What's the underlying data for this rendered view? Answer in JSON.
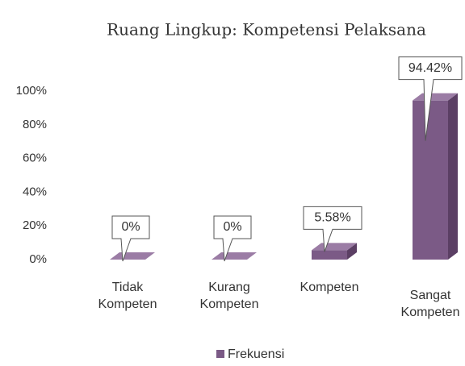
{
  "chart_data": {
    "type": "bar3d",
    "title": "Ruang Lingkup: Kompetensi Pelaksana",
    "categories": [
      "Tidak Kompeten",
      "Kurang Kompeten",
      "Kompeten",
      "Sangat Kompeten"
    ],
    "series": [
      {
        "name": "Frekuensi",
        "color": "#7b5a86",
        "values": [
          0,
          0,
          5.58,
          94.42
        ],
        "value_labels": [
          "0%",
          "0%",
          "5.58%",
          "94.42%"
        ]
      }
    ],
    "ylim": [
      0,
      100
    ],
    "yticks": [
      {
        "value": 0,
        "label": "0%"
      },
      {
        "value": 20,
        "label": "20%"
      },
      {
        "value": 40,
        "label": "40%"
      },
      {
        "value": 60,
        "label": "60%"
      },
      {
        "value": 80,
        "label": "80%"
      },
      {
        "value": 100,
        "label": "100%"
      }
    ],
    "legend": "bottom"
  }
}
